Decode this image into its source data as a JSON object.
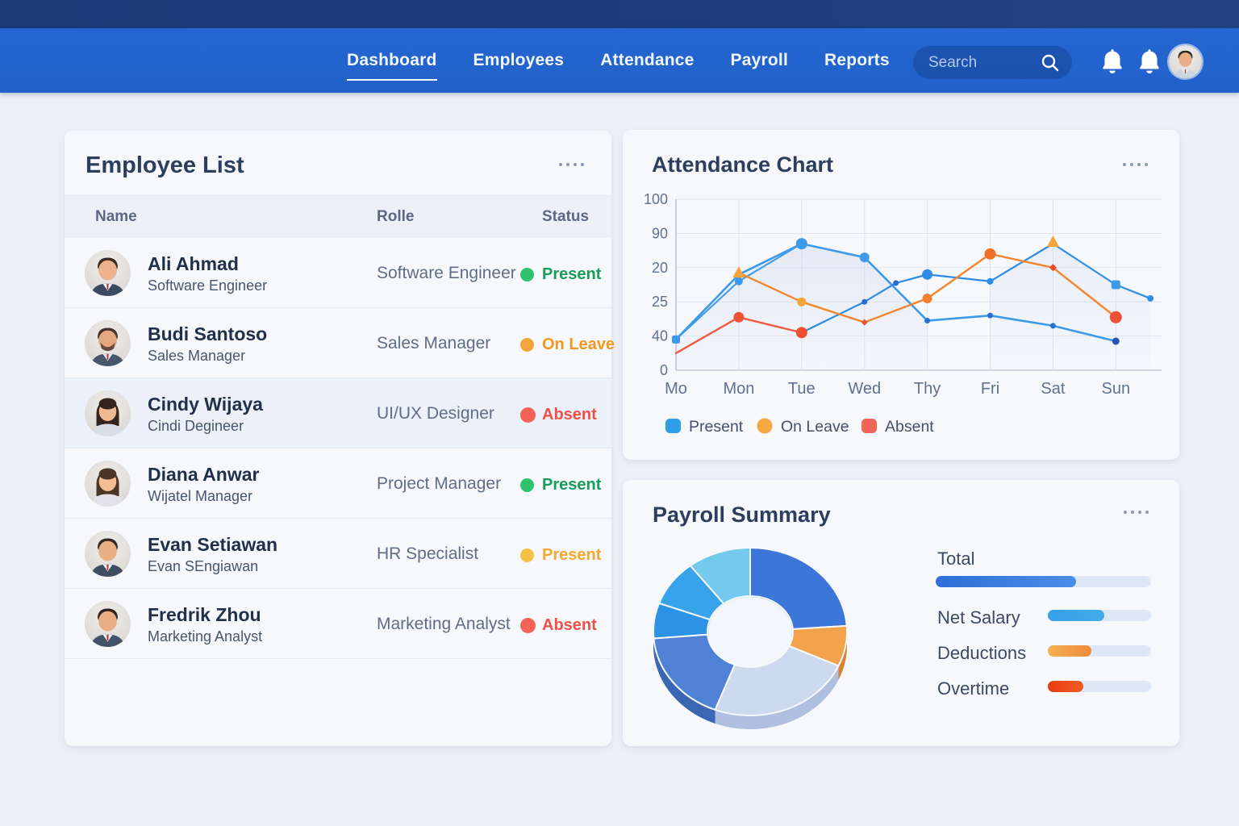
{
  "navbar": {
    "items": [
      {
        "label": "Dashboard",
        "active": true
      },
      {
        "label": "Employees",
        "active": false
      },
      {
        "label": "Attendance",
        "active": false
      },
      {
        "label": "Payroll",
        "active": false
      },
      {
        "label": "Reports",
        "active": false
      }
    ],
    "search_placeholder": "Search",
    "icons": [
      "bell-icon",
      "bell-icon",
      "avatar"
    ],
    "avatar": {
      "long_hair": false,
      "beard": false,
      "hair": "#2e2620",
      "skin2": "#e8ae85",
      "top": "#ccd6e0",
      "shirt": "#f2f5f8"
    }
  },
  "employee_list": {
    "title": "Employee List",
    "columns": [
      "Name",
      "Rolle",
      "Status"
    ],
    "rows": [
      {
        "name": "Ali Ahmad",
        "subtitle": "Software Engineer",
        "role": "Software Engineer",
        "status": "Present",
        "status_color": "green",
        "highlight": false,
        "avatar": {
          "long_hair": false,
          "beard": false,
          "hair": "#3a2c22",
          "skin2": "#ecb28c",
          "top": "#3b4a61",
          "shirt": "#f4f6f8"
        }
      },
      {
        "name": "Budi Santoso",
        "subtitle": "Sales Manager",
        "role": "Sales Manager",
        "status": "On Leave",
        "status_color": "orange",
        "highlight": false,
        "avatar": {
          "long_hair": false,
          "beard": true,
          "hair": "#43332a",
          "skin2": "#e5a87e",
          "top": "#47566b",
          "shirt": "#e8ecf2"
        }
      },
      {
        "name": "Cindy Wijaya",
        "subtitle": "Cindi Degineer",
        "role": "UI/UX Designer",
        "status": "Absent",
        "status_color": "red",
        "highlight": true,
        "avatar": {
          "long_hair": true,
          "beard": false,
          "hair": "#33241d",
          "skin2": "#f0b892",
          "top": "#d8dde6",
          "shirt": "#d8dde6"
        }
      },
      {
        "name": "Diana Anwar",
        "subtitle": "Wijatel Manager",
        "role": "Project Manager",
        "status": "Present",
        "status_color": "green",
        "highlight": false,
        "avatar": {
          "long_hair": true,
          "beard": false,
          "hair": "#4a3526",
          "skin2": "#f2bc96",
          "top": "#e2e2e8",
          "shirt": "#e2e2e8"
        }
      },
      {
        "name": "Evan Setiawan",
        "subtitle": "Evan SEngiawan",
        "role": "HR Specialist",
        "status": "Present",
        "status_color": "amber",
        "highlight": false,
        "avatar": {
          "long_hair": false,
          "beard": false,
          "hair": "#352822",
          "skin2": "#eab084",
          "top": "#3f4e63",
          "shirt": "#f2f4f7"
        }
      },
      {
        "name": "Fredrik Zhou",
        "subtitle": "Marketing Analyst",
        "role": "Marketing Analyst",
        "status": "Absent",
        "status_color": "red",
        "highlight": false,
        "avatar": {
          "long_hair": false,
          "beard": false,
          "hair": "#2e231d",
          "skin2": "#e8ad82",
          "top": "#44536a",
          "shirt": "#eef1f5"
        }
      }
    ]
  },
  "attendance": {
    "title": "Attendance Chart"
  },
  "payroll": {
    "title": "Payroll Summary"
  },
  "chart_data": [
    {
      "type": "line",
      "title": "Attendance Chart",
      "x_tick_labels": [
        "Mo",
        "Mon",
        "Tue",
        "Wed",
        "Thy",
        "Fri",
        "Sat",
        "Sun"
      ],
      "y_tick_labels": [
        "100",
        "90",
        "20",
        "25",
        "40",
        "0"
      ],
      "y_gridline_values": [
        100,
        80,
        60,
        40,
        20,
        0
      ],
      "ylim": [
        0,
        100
      ],
      "grid": true,
      "legend_position": "bottom",
      "legend": [
        {
          "label": "Present",
          "color": "#2d9fe8",
          "shape": "roundrect"
        },
        {
          "label": "On Leave",
          "color": "#f5a843",
          "shape": "circle"
        },
        {
          "label": "Absent",
          "color": "#f0645c",
          "shape": "roundrect"
        }
      ],
      "series": [
        {
          "name": "present-main",
          "color": "#3d9ae8",
          "width": 2.6,
          "x": [
            0,
            1,
            2,
            3,
            4,
            5,
            6,
            7
          ],
          "y": [
            18,
            56,
            74,
            66,
            29,
            32,
            26,
            17
          ],
          "markers": [
            {
              "i": 0,
              "r": 5,
              "shape": "square",
              "color": "#3d9ae8"
            },
            {
              "i": 1,
              "r": 5,
              "color": "#3d9ae8"
            },
            {
              "i": 2,
              "r": 7,
              "color": "#3d9ae8"
            },
            {
              "i": 3,
              "r": 6,
              "color": "#3d9ae8"
            },
            {
              "i": 4,
              "r": 3.5,
              "color": "#2a6fd0"
            },
            {
              "i": 5,
              "r": 3.5,
              "color": "#2a6fd0"
            },
            {
              "i": 6,
              "r": 3.5,
              "color": "#2a6fd0"
            },
            {
              "i": 7,
              "r": 4.5,
              "color": "#2456b8"
            }
          ]
        },
        {
          "name": "present-secondary",
          "color": "#3d9ae8",
          "width": 2,
          "x": [
            0,
            1,
            2
          ],
          "y": [
            18,
            52,
            74
          ],
          "markers": [
            {
              "i": 1,
              "r": 5,
              "color": "#3d9ae8"
            }
          ]
        },
        {
          "name": "present-rising",
          "color": "#2e8de4",
          "width": 2.2,
          "x": [
            2,
            3,
            3.5,
            4,
            5,
            6,
            7,
            7.55
          ],
          "y": [
            22,
            40,
            51,
            56,
            52,
            74,
            50,
            42
          ],
          "markers": [
            {
              "i": 1,
              "r": 3.5,
              "color": "#2a6fd0"
            },
            {
              "i": 2,
              "r": 3.5,
              "color": "#2a6fd0"
            },
            {
              "i": 3,
              "r": 6.5,
              "color": "#2e8de4"
            },
            {
              "i": 4,
              "r": 4,
              "color": "#2e8de4"
            },
            {
              "i": 6,
              "r": 5.5,
              "shape": "square",
              "color": "#3d9ae8"
            },
            {
              "i": 7,
              "r": 4,
              "color": "#2e8de4"
            }
          ]
        },
        {
          "name": "on-leave",
          "color": "#f0862e",
          "width": 2.4,
          "x": [
            1,
            2,
            3,
            4,
            5,
            6,
            7
          ],
          "y": [
            57,
            40,
            28,
            42,
            68,
            60,
            31
          ],
          "markers": [
            {
              "i": 0,
              "r": 8,
              "shape": "triangle",
              "color": "#f5a53c"
            },
            {
              "i": 1,
              "r": 5.5,
              "color": "#f5a53c"
            },
            {
              "i": 2,
              "r": 4,
              "shape": "diamond",
              "color": "#e8502e"
            },
            {
              "i": 3,
              "r": 6,
              "color": "#f08030"
            },
            {
              "i": 4,
              "r": 7,
              "color": "#f07028"
            },
            {
              "i": 5,
              "r": 4.5,
              "shape": "diamond",
              "color": "#e84a30"
            },
            {
              "i": 6,
              "r": 7.5,
              "color": "#ee5038"
            }
          ]
        },
        {
          "name": "absent",
          "color": "#ee5a42",
          "width": 2.4,
          "x": [
            0,
            1,
            2
          ],
          "y": [
            10,
            31,
            22
          ],
          "markers": [
            {
              "i": 1,
              "r": 6.5,
              "color": "#ee5038"
            },
            {
              "i": 2,
              "r": 7,
              "color": "#ee4f30"
            }
          ]
        }
      ],
      "extra_markers": [
        {
          "x": 6,
          "y": 75,
          "shape": "triangle",
          "color": "#f5a53c",
          "r": 8
        }
      ],
      "area_fills": [
        {
          "x": [
            0,
            1,
            2,
            3,
            4
          ],
          "y": [
            18,
            56,
            74,
            66,
            29
          ],
          "color": "#c7d3ea",
          "opacity": 0.4
        },
        {
          "x": [
            5,
            6,
            7,
            7.55
          ],
          "y": [
            52,
            74,
            50,
            42
          ],
          "color": "#ccd8ee",
          "opacity": 0.32
        }
      ]
    },
    {
      "type": "pie",
      "title": "Payroll Summary",
      "donut_slices": [
        {
          "value": 23.9,
          "color": "#3b76d8",
          "side": "#2b5cb4"
        },
        {
          "value": 7.8,
          "color": "#f2a24a",
          "side": "#d9842f"
        },
        {
          "value": 24.2,
          "color": "#cdd9ee",
          "side": "#aebfe0"
        },
        {
          "value": 17.8,
          "color": "#4f82d4",
          "side": "#3a66b4"
        },
        {
          "value": 6.8,
          "color": "#2d93e4",
          "side": "#2276c2"
        },
        {
          "value": 8.9,
          "color": "#38a3ea",
          "side": "#2a86ca"
        },
        {
          "value": 10.6,
          "color": "#74c9ee",
          "side": "#55aad4"
        }
      ],
      "bars": [
        {
          "label": "Total",
          "pct": 65,
          "color_start": "#2e6fd8",
          "color_end": "#4b8ce8",
          "layout": "full"
        },
        {
          "label": "Net Salary",
          "pct": 55,
          "color_start": "#36a0e8",
          "color_end": "#43ace9",
          "layout": "side"
        },
        {
          "label": "Deductions",
          "pct": 42,
          "color_start": "#f5b053",
          "color_end": "#ee8c38",
          "layout": "side"
        },
        {
          "label": "Overtime",
          "pct": 34,
          "color_start": "#e83d14",
          "color_end": "#f05c22",
          "layout": "side"
        }
      ]
    }
  ]
}
